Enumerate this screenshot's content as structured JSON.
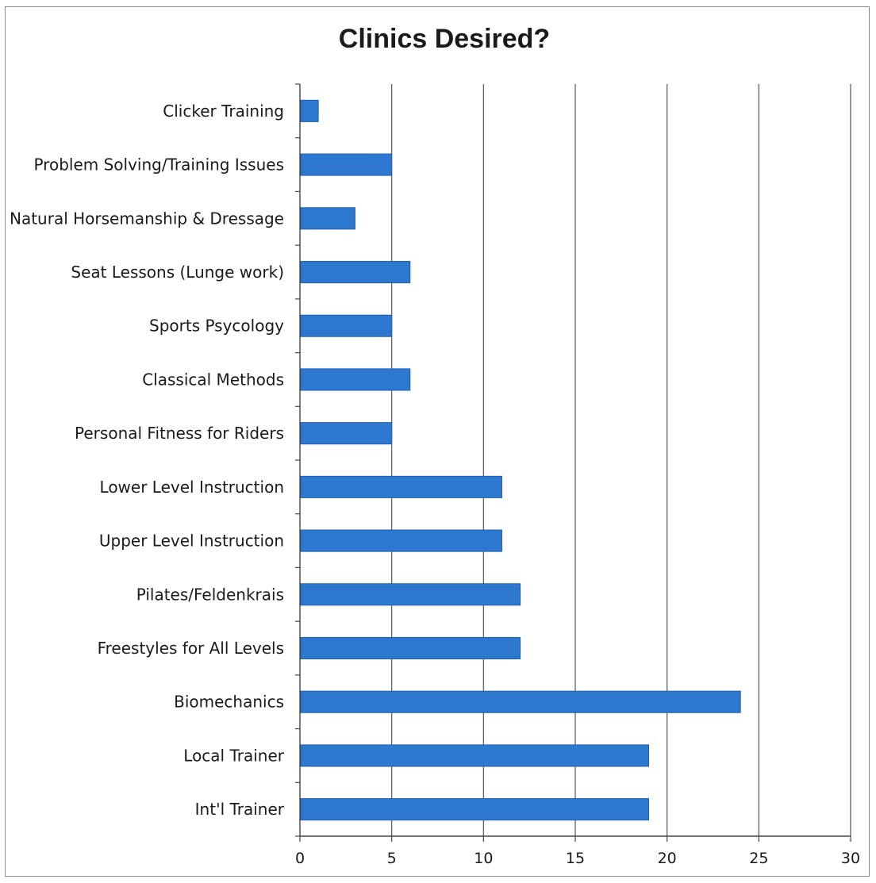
{
  "chart_data": {
    "type": "bar",
    "orientation": "horizontal",
    "title": "Clinics Desired?",
    "categories": [
      "Clicker Training",
      "Problem Solving/Training Issues",
      "Natural Horsemanship & Dressage",
      "Seat Lessons (Lunge work)",
      "Sports Psycology",
      "Classical Methods",
      "Personal Fitness for Riders",
      "Lower Level Instruction",
      "Upper Level Instruction",
      "Pilates/Feldenkrais",
      "Freestyles for All Levels",
      "Biomechanics",
      "Local Trainer",
      "Int'l Trainer"
    ],
    "values": [
      1,
      5,
      3,
      6,
      5,
      6,
      5,
      11,
      11,
      12,
      12,
      24,
      19,
      19
    ],
    "xlim": [
      0,
      30
    ],
    "xticks": [
      "0",
      "5",
      "10",
      "15",
      "20",
      "25",
      "30"
    ],
    "xlabel": "",
    "ylabel": "",
    "grid": "vertical",
    "legend": "none",
    "colors": {
      "bar": "#2e78cf",
      "bar_stroke": "#1f5fae",
      "grid": "#555555",
      "axis": "#444444"
    }
  }
}
